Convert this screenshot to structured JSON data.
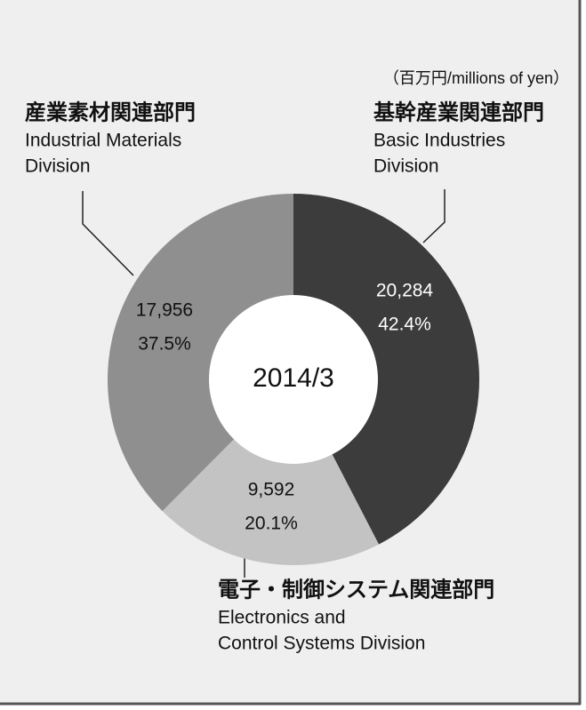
{
  "chart_data": {
    "type": "donut",
    "unit_note": "（百万円/millions of yen）",
    "center_label": "2014/3",
    "categories": [
      "基幹産業関連部門",
      "電子・制御システム関連部門",
      "産業素材関連部門"
    ],
    "categories_en": [
      [
        "Basic Industries",
        "Division"
      ],
      [
        "Electronics and",
        "Control Systems Division"
      ],
      [
        "Industrial Materials",
        "Division"
      ]
    ],
    "values": [
      20284,
      9592,
      17956
    ],
    "value_labels": [
      "20,284",
      "9,592",
      "17,956"
    ],
    "percents": [
      42.4,
      20.1,
      37.5
    ],
    "percent_labels": [
      "42.4%",
      "20.1%",
      "37.5%"
    ],
    "colors": [
      "#3c3c3c",
      "#c3c3c3",
      "#8f8f8f"
    ]
  }
}
